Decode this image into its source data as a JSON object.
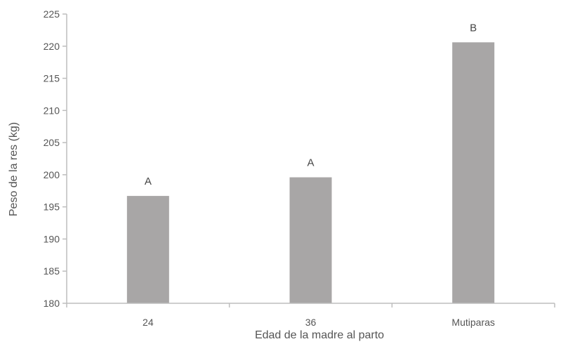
{
  "chart_data": {
    "type": "bar",
    "title": "",
    "xlabel": "Edad de la madre al parto",
    "ylabel": "Peso de la res (kg)",
    "categories": [
      "24",
      "36",
      "Mutiparas"
    ],
    "values": [
      196.7,
      199.6,
      220.6
    ],
    "annotations": [
      "A",
      "A",
      "B"
    ],
    "ylim": [
      180,
      225
    ],
    "yticks": [
      180,
      185,
      190,
      195,
      200,
      205,
      210,
      215,
      220,
      225
    ],
    "bar_color": "#a8a6a6",
    "axis_color": "#bdbdbd",
    "grid": false,
    "legend": "none"
  }
}
